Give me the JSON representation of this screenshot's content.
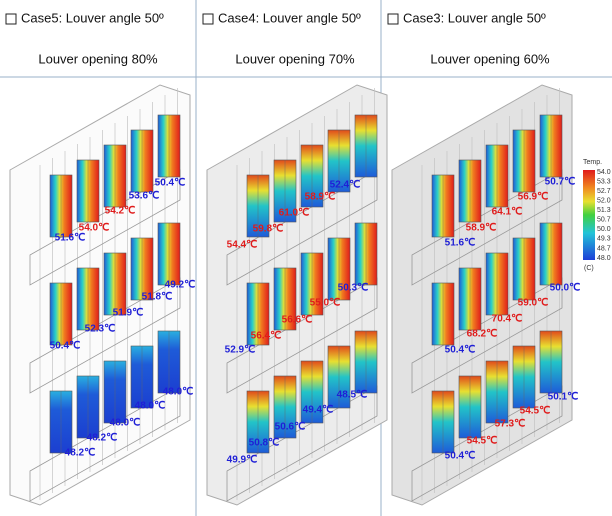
{
  "panels": [
    {
      "title": "Case5: Louver angle 50º",
      "subtitle": "Louver opening 80%",
      "labels": [
        {
          "text": "50.4℃",
          "color": "#1f1fd6"
        },
        {
          "text": "53.6℃",
          "color": "#1f1fd6"
        },
        {
          "text": "54.2℃",
          "color": "#e01b1b"
        },
        {
          "text": "54.0℃",
          "color": "#e01b1b"
        },
        {
          "text": "51.6℃",
          "color": "#1f1fd6"
        },
        {
          "text": "49.2℃",
          "color": "#1f1fd6"
        },
        {
          "text": "51.8℃",
          "color": "#1f1fd6"
        },
        {
          "text": "51.9℃",
          "color": "#1f1fd6"
        },
        {
          "text": "52.3℃",
          "color": "#1f1fd6"
        },
        {
          "text": "50.4℃",
          "color": "#1f1fd6"
        },
        {
          "text": "48.0℃",
          "color": "#1f1fd6"
        },
        {
          "text": "48.0℃",
          "color": "#1f1fd6"
        },
        {
          "text": "48.0℃",
          "color": "#1f1fd6"
        },
        {
          "text": "48.2℃",
          "color": "#1f1fd6"
        },
        {
          "text": "48.2℃",
          "color": "#1f1fd6"
        }
      ]
    },
    {
      "title": "Case4: Louver angle 50º",
      "subtitle": "Louver opening 70%",
      "labels": [
        {
          "text": "52.4℃",
          "color": "#1f1fd6"
        },
        {
          "text": "58.9℃",
          "color": "#e01b1b"
        },
        {
          "text": "61.0℃",
          "color": "#e01b1b"
        },
        {
          "text": "59.8℃",
          "color": "#e01b1b"
        },
        {
          "text": "54.4℃",
          "color": "#e01b1b"
        },
        {
          "text": "50.3℃",
          "color": "#1f1fd6"
        },
        {
          "text": "55.0℃",
          "color": "#e01b1b"
        },
        {
          "text": "56.6℃",
          "color": "#e01b1b"
        },
        {
          "text": "56.4℃",
          "color": "#e01b1b"
        },
        {
          "text": "52.9℃",
          "color": "#1f1fd6"
        },
        {
          "text": "48.5℃",
          "color": "#1f1fd6"
        },
        {
          "text": "49.4℃",
          "color": "#1f1fd6"
        },
        {
          "text": "50.6℃",
          "color": "#1f1fd6"
        },
        {
          "text": "50.8℃",
          "color": "#1f1fd6"
        },
        {
          "text": "49.9℃",
          "color": "#1f1fd6"
        }
      ]
    },
    {
      "title": "Case3: Louver angle 50º",
      "subtitle": "Louver opening 60%",
      "labels": [
        {
          "text": "50.7℃",
          "color": "#1f1fd6"
        },
        {
          "text": "56.9℃",
          "color": "#e01b1b"
        },
        {
          "text": "64.1℃",
          "color": "#e01b1b"
        },
        {
          "text": "58.9℃",
          "color": "#e01b1b"
        },
        {
          "text": "51.6℃",
          "color": "#1f1fd6"
        },
        {
          "text": "50.0℃",
          "color": "#1f1fd6"
        },
        {
          "text": "59.0℃",
          "color": "#e01b1b"
        },
        {
          "text": "70.4℃",
          "color": "#e01b1b"
        },
        {
          "text": "68.2℃",
          "color": "#e01b1b"
        },
        {
          "text": "50.4℃",
          "color": "#1f1fd6"
        },
        {
          "text": "50.1℃",
          "color": "#1f1fd6"
        },
        {
          "text": "54.5℃",
          "color": "#e01b1b"
        },
        {
          "text": "57.3℃",
          "color": "#e01b1b"
        },
        {
          "text": "54.5℃",
          "color": "#e01b1b"
        },
        {
          "text": "50.4℃",
          "color": "#1f1fd6"
        }
      ]
    }
  ],
  "legend": {
    "title": "Temp.",
    "ticks": [
      "54.0",
      "53.3",
      "52.7",
      "52.0",
      "51.3",
      "50.7",
      "50.0",
      "49.3",
      "48.7",
      "48.0"
    ],
    "unit": "(C)"
  }
}
